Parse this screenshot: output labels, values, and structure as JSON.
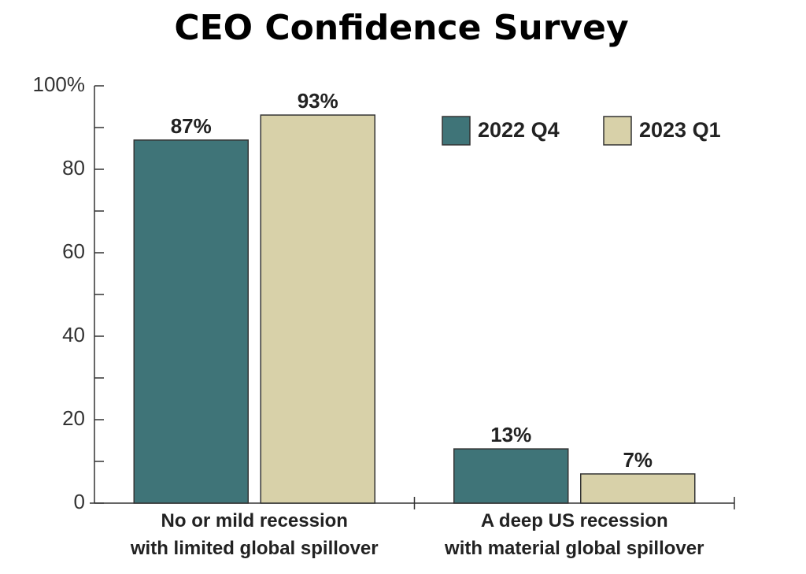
{
  "chart_data": {
    "type": "bar",
    "title": "CEO Confidence Survey",
    "categories": [
      "No or mild recession\nwith limited global spillover",
      "A deep US recession\nwith material global spillover"
    ],
    "series": [
      {
        "name": "2022 Q4",
        "color": "#3f7478",
        "values": [
          87,
          13
        ],
        "value_labels": [
          "87%",
          "13%"
        ]
      },
      {
        "name": "2023 Q1",
        "color": "#d8d1a9",
        "values": [
          93,
          7
        ],
        "value_labels": [
          "93%",
          "7%"
        ]
      }
    ],
    "ylim": [
      0,
      100
    ],
    "yticks": [
      0,
      20,
      40,
      60,
      80,
      {
        "value": 100,
        "label": "100%"
      }
    ],
    "yminorticks": [
      10,
      30,
      50,
      70,
      90
    ],
    "legend": "upper right"
  }
}
